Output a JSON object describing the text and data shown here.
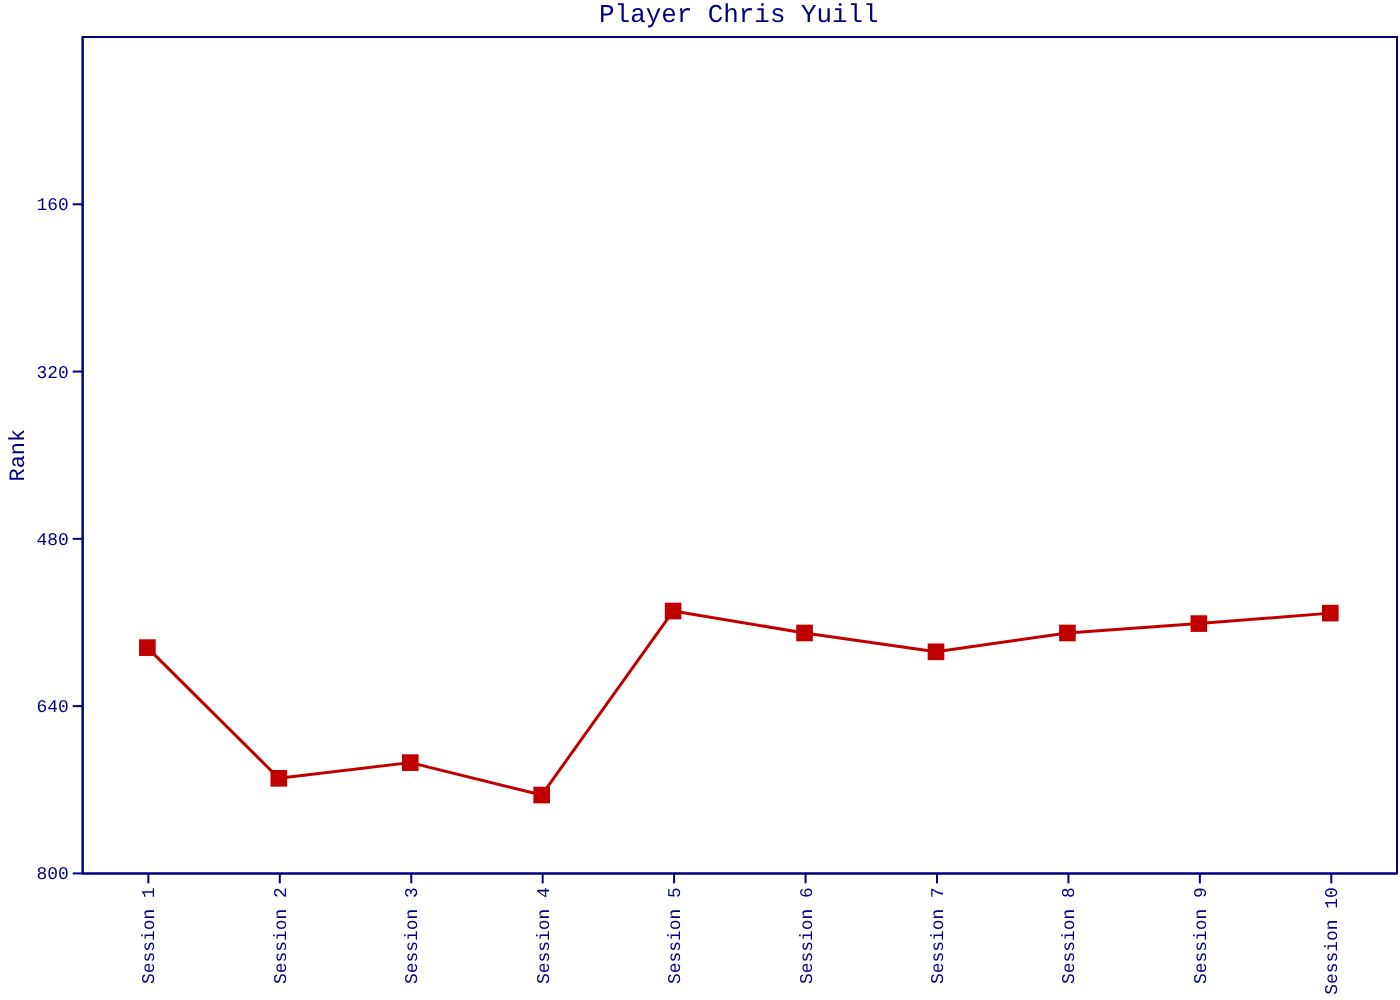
{
  "chart_data": {
    "type": "line",
    "title": "Player Chris Yuill",
    "ylabel": "Rank",
    "categories": [
      "Session 1",
      "Session 2",
      "Session 3",
      "Session 4",
      "Session 5",
      "Session 6",
      "Session 7",
      "Session 8",
      "Session 9",
      "Session 10"
    ],
    "series": [
      {
        "color": "#c00000",
        "values": [
          585,
          710,
          695,
          726,
          550,
          571,
          589,
          571,
          562,
          552
        ]
      }
    ],
    "ylim": [
      800,
      0
    ],
    "yticks": [
      160,
      320,
      480,
      640,
      800
    ],
    "grid": false,
    "legend": false,
    "marker": "square",
    "line_style": "solid"
  }
}
